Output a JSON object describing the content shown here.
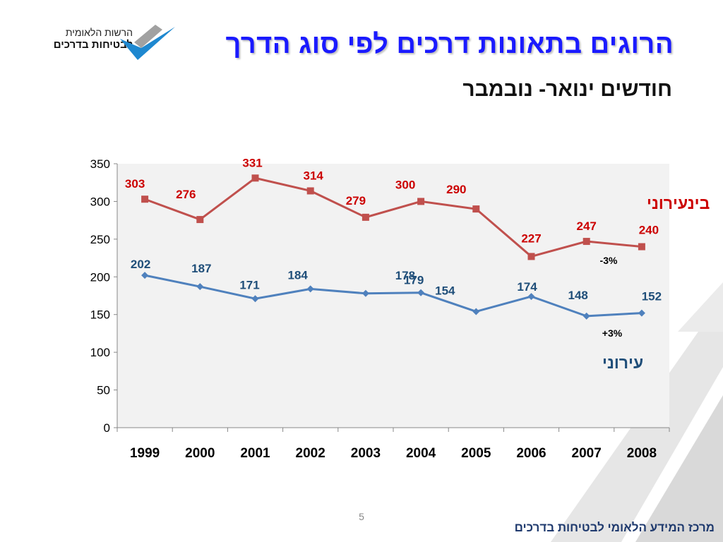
{
  "header": {
    "logo_line1": "הרשות הלאומית",
    "logo_line2": "לבטיחות בדרכים",
    "title": "הרוגים בתאונות דרכים לפי סוג הדרך",
    "subtitle": "חודשים ינואר- נובמבר"
  },
  "footer": {
    "page_number": "5",
    "org": "מרכז המידע הלאומי לבטיחות בדרכים"
  },
  "colors": {
    "title": "#1a1aff",
    "interurban": "#c0504d",
    "urban": "#4f81bd",
    "interurban_label": "#cc0000",
    "urban_label": "#1f4e79",
    "plot_bg": "#f2f2f2"
  },
  "chart_data": {
    "type": "line",
    "categories": [
      "1999",
      "2000",
      "2001",
      "2002",
      "2003",
      "2004",
      "2005",
      "2006",
      "2007",
      "2008"
    ],
    "ylim": [
      0,
      350
    ],
    "yticks": [
      0,
      50,
      100,
      150,
      200,
      250,
      300,
      350
    ],
    "grid": false,
    "series": [
      {
        "name": "בינעירוני",
        "values": [
          303,
          276,
          331,
          314,
          279,
          300,
          290,
          227,
          247,
          240
        ],
        "marker": "square"
      },
      {
        "name": "עירוני",
        "values": [
          202,
          187,
          171,
          184,
          178,
          179,
          154,
          174,
          148,
          152
        ],
        "marker": "diamond"
      }
    ],
    "annotations": [
      "-3%",
      "+3%"
    ]
  }
}
